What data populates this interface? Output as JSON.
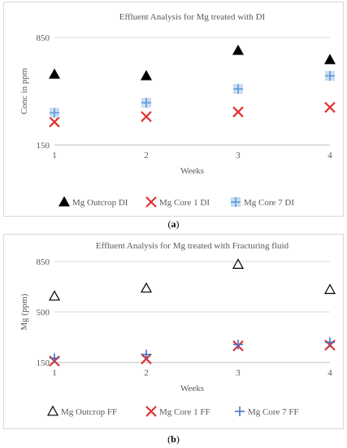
{
  "chart_data": [
    {
      "type": "scatter",
      "title": "Effluent Analysis for Mg treated with DI",
      "xlabel": "Weeks",
      "ylabel": "Conc in ppm",
      "x_ticks": [
        "1",
        "2",
        "3",
        "4"
      ],
      "y_ticks": [
        "150",
        "850"
      ],
      "xlim": [
        1,
        4
      ],
      "ylim": [
        150,
        850
      ],
      "grid": "horizontal",
      "legend": "bottom",
      "series": [
        {
          "name": "Mg Outcrop DI",
          "marker": "filled-triangle",
          "color": "#000000",
          "x": [
            1,
            2,
            3,
            4
          ],
          "y": [
            610,
            600,
            765,
            705
          ]
        },
        {
          "name": "Mg Core 1 DI",
          "marker": "x",
          "color": "#e03030",
          "x": [
            1,
            2,
            3,
            4
          ],
          "y": [
            300,
            335,
            365,
            395
          ]
        },
        {
          "name": "Mg Core 7 DI",
          "marker": "plus-box",
          "color": "#5b9bd5",
          "x": [
            1,
            2,
            3,
            4
          ],
          "y": [
            360,
            425,
            515,
            600
          ]
        }
      ],
      "caption": "(a)"
    },
    {
      "type": "scatter",
      "title": "Effluent Analysis for Mg treated with Fracturing fluid",
      "xlabel": "Weeks",
      "ylabel": "Mg (ppm)",
      "x_ticks": [
        "1",
        "2",
        "3",
        "4"
      ],
      "y_ticks": [
        "150",
        "500",
        "850"
      ],
      "xlim": [
        1,
        4
      ],
      "ylim": [
        150,
        850
      ],
      "grid": "horizontal",
      "legend": "bottom",
      "series": [
        {
          "name": "Mg Outcrop FF",
          "marker": "open-triangle",
          "color": "#000000",
          "x": [
            1,
            2,
            3,
            4
          ],
          "y": [
            610,
            665,
            830,
            655
          ]
        },
        {
          "name": "Mg Core 1 FF",
          "marker": "x",
          "color": "#e03030",
          "x": [
            1,
            2,
            3,
            4
          ],
          "y": [
            160,
            175,
            265,
            270
          ]
        },
        {
          "name": "Mg Core 7 FF",
          "marker": "plus",
          "color": "#4472c4",
          "x": [
            1,
            2,
            3,
            4
          ],
          "y": [
            180,
            205,
            275,
            290
          ]
        }
      ],
      "caption": "(b)"
    }
  ]
}
